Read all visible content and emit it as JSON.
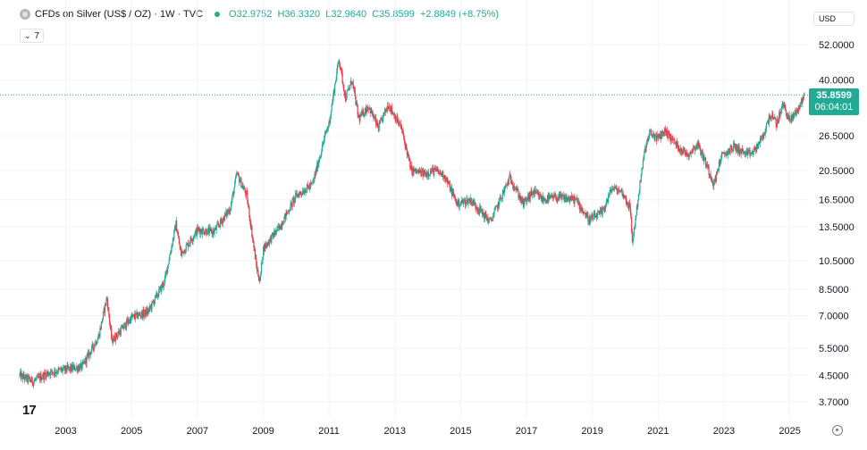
{
  "header": {
    "symbol_title": "CFDs on Silver (US$ / OZ) · 1W · TVC",
    "open": "O32.9752",
    "high": "H36.3320",
    "low": "L32.9640",
    "close": "C35.8599",
    "change": "+2.8849 (+8.75%)",
    "indicator_toggle_label": "7"
  },
  "currency_selector": {
    "label": "USD"
  },
  "price_tag": {
    "price": "35.8599",
    "countdown": "06:04:01"
  },
  "logo_text": "17",
  "colors": {
    "up": "#22ab94",
    "down": "#f23645",
    "grid": "#f0f3fa",
    "last_price_line": "#22ab94"
  },
  "chart_data": {
    "type": "candlestick",
    "price_scale": "log",
    "y_ticks": [
      "52.0000",
      "40.0000",
      "26.5000",
      "20.5000",
      "16.5000",
      "13.5000",
      "10.5000",
      "8.5000",
      "7.0000",
      "5.5000",
      "4.5000",
      "3.7000"
    ],
    "x_ticks": [
      "2003",
      "2005",
      "2007",
      "2009",
      "2011",
      "2013",
      "2015",
      "2017",
      "2019",
      "2021",
      "2023",
      "2025"
    ],
    "last_price": 35.8599,
    "trend_anchors": [
      [
        2001.6,
        4.5
      ],
      [
        2002.0,
        4.3
      ],
      [
        2002.5,
        4.6
      ],
      [
        2003.0,
        4.7
      ],
      [
        2003.5,
        4.8
      ],
      [
        2004.0,
        6.0
      ],
      [
        2004.25,
        8.0
      ],
      [
        2004.4,
        5.8
      ],
      [
        2005.0,
        6.9
      ],
      [
        2005.5,
        7.2
      ],
      [
        2006.0,
        9.0
      ],
      [
        2006.35,
        13.8
      ],
      [
        2006.5,
        11.0
      ],
      [
        2007.0,
        13.2
      ],
      [
        2007.5,
        13.0
      ],
      [
        2008.0,
        15.5
      ],
      [
        2008.2,
        20.0
      ],
      [
        2008.5,
        17.0
      ],
      [
        2008.8,
        10.0
      ],
      [
        2008.9,
        9.0
      ],
      [
        2009.0,
        11.5
      ],
      [
        2009.5,
        13.5
      ],
      [
        2010.0,
        17.0
      ],
      [
        2010.5,
        18.5
      ],
      [
        2010.9,
        27.0
      ],
      [
        2011.0,
        29.0
      ],
      [
        2011.3,
        47.0
      ],
      [
        2011.5,
        35.0
      ],
      [
        2011.7,
        40.0
      ],
      [
        2011.9,
        30.0
      ],
      [
        2012.2,
        33.0
      ],
      [
        2012.5,
        28.0
      ],
      [
        2012.8,
        33.5
      ],
      [
        2013.2,
        28.0
      ],
      [
        2013.5,
        20.5
      ],
      [
        2013.9,
        20.0
      ],
      [
        2014.2,
        20.5
      ],
      [
        2014.5,
        19.8
      ],
      [
        2014.9,
        16.0
      ],
      [
        2015.3,
        16.5
      ],
      [
        2015.9,
        14.0
      ],
      [
        2016.5,
        19.5
      ],
      [
        2016.9,
        16.0
      ],
      [
        2017.2,
        17.5
      ],
      [
        2017.5,
        16.5
      ],
      [
        2017.9,
        16.8
      ],
      [
        2018.5,
        16.5
      ],
      [
        2018.9,
        14.2
      ],
      [
        2019.3,
        15.0
      ],
      [
        2019.6,
        18.0
      ],
      [
        2019.9,
        17.5
      ],
      [
        2020.15,
        15.5
      ],
      [
        2020.22,
        12.0
      ],
      [
        2020.4,
        17.0
      ],
      [
        2020.6,
        24.0
      ],
      [
        2020.75,
        27.0
      ],
      [
        2021.0,
        26.0
      ],
      [
        2021.2,
        27.5
      ],
      [
        2021.6,
        24.5
      ],
      [
        2021.9,
        23.0
      ],
      [
        2022.2,
        25.0
      ],
      [
        2022.5,
        21.0
      ],
      [
        2022.7,
        18.5
      ],
      [
        2022.9,
        22.5
      ],
      [
        2023.3,
        24.5
      ],
      [
        2023.7,
        23.0
      ],
      [
        2023.9,
        23.5
      ],
      [
        2024.2,
        26.5
      ],
      [
        2024.4,
        31.0
      ],
      [
        2024.6,
        29.0
      ],
      [
        2024.8,
        33.5
      ],
      [
        2025.0,
        29.5
      ],
      [
        2025.3,
        33.0
      ],
      [
        2025.45,
        35.86
      ]
    ]
  }
}
